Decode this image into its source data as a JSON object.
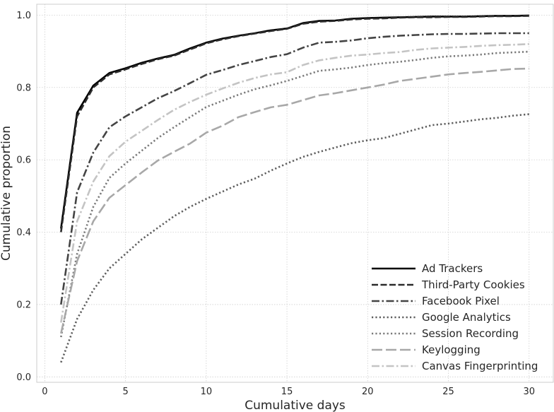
{
  "chart_data": {
    "type": "line",
    "xlabel": "Cumulative days",
    "ylabel": "Cumulative proportion",
    "xlim": [
      -0.5,
      31.5
    ],
    "ylim": [
      -0.015,
      1.03
    ],
    "xticks": [
      0,
      5,
      10,
      15,
      20,
      25,
      30
    ],
    "yticks": [
      0.0,
      0.2,
      0.4,
      0.6,
      0.8,
      1.0
    ],
    "grid": true,
    "legend_position": "lower-right",
    "x": [
      1,
      2,
      3,
      4,
      5,
      6,
      7,
      8,
      9,
      10,
      11,
      12,
      13,
      14,
      15,
      16,
      17,
      18,
      19,
      20,
      21,
      22,
      23,
      24,
      25,
      26,
      27,
      28,
      29,
      30
    ],
    "series": [
      {
        "name": "Ad Trackers",
        "color": "#000000",
        "dash": "solid",
        "values": [
          0.41,
          0.73,
          0.805,
          0.84,
          0.853,
          0.868,
          0.88,
          0.89,
          0.908,
          0.924,
          0.935,
          0.943,
          0.95,
          0.958,
          0.963,
          0.978,
          0.984,
          0.985,
          0.99,
          0.992,
          0.993,
          0.994,
          0.995,
          0.996,
          0.996,
          0.996,
          0.997,
          0.998,
          0.998,
          0.999
        ]
      },
      {
        "name": "Third-Party Cookies",
        "color": "#2b2b2b",
        "dash": "dashed",
        "values": [
          0.4,
          0.72,
          0.8,
          0.836,
          0.85,
          0.865,
          0.878,
          0.888,
          0.905,
          0.922,
          0.933,
          0.942,
          0.949,
          0.956,
          0.962,
          0.976,
          0.982,
          0.984,
          0.988,
          0.99,
          0.991,
          0.993,
          0.994,
          0.994,
          0.995,
          0.995,
          0.996,
          0.997,
          0.997,
          0.998
        ]
      },
      {
        "name": "Facebook Pixel",
        "color": "#444444",
        "dash": "dashdot",
        "values": [
          0.2,
          0.51,
          0.62,
          0.69,
          0.72,
          0.745,
          0.77,
          0.79,
          0.812,
          0.835,
          0.848,
          0.862,
          0.873,
          0.884,
          0.892,
          0.91,
          0.924,
          0.926,
          0.93,
          0.936,
          0.94,
          0.943,
          0.945,
          0.947,
          0.948,
          0.948,
          0.949,
          0.95,
          0.95,
          0.95
        ]
      },
      {
        "name": "Google Analytics",
        "color": "#5e5e5e",
        "dash": "dotted",
        "values": [
          0.04,
          0.16,
          0.24,
          0.3,
          0.34,
          0.38,
          0.412,
          0.444,
          0.47,
          0.492,
          0.512,
          0.532,
          0.548,
          0.57,
          0.59,
          0.608,
          0.622,
          0.634,
          0.646,
          0.654,
          0.66,
          0.672,
          0.684,
          0.696,
          0.7,
          0.706,
          0.712,
          0.716,
          0.722,
          0.726
        ]
      },
      {
        "name": "Session Recording",
        "color": "#7a7a7a",
        "dash": "dotted",
        "values": [
          0.11,
          0.34,
          0.47,
          0.55,
          0.59,
          0.625,
          0.66,
          0.69,
          0.718,
          0.746,
          0.763,
          0.78,
          0.795,
          0.806,
          0.818,
          0.832,
          0.846,
          0.85,
          0.855,
          0.862,
          0.867,
          0.871,
          0.876,
          0.882,
          0.886,
          0.888,
          0.891,
          0.895,
          0.897,
          0.899
        ]
      },
      {
        "name": "Keylogging",
        "color": "#a8a8a8",
        "dash": "longdash",
        "values": [
          0.12,
          0.32,
          0.43,
          0.495,
          0.53,
          0.565,
          0.598,
          0.622,
          0.645,
          0.675,
          0.694,
          0.718,
          0.732,
          0.745,
          0.752,
          0.765,
          0.778,
          0.784,
          0.792,
          0.8,
          0.808,
          0.818,
          0.824,
          0.83,
          0.836,
          0.84,
          0.843,
          0.847,
          0.851,
          0.852
        ]
      },
      {
        "name": "Canvas Fingerprinting",
        "color": "#c4c4c4",
        "dash": "dashdot",
        "values": [
          0.15,
          0.43,
          0.54,
          0.61,
          0.65,
          0.68,
          0.71,
          0.738,
          0.76,
          0.78,
          0.797,
          0.813,
          0.826,
          0.836,
          0.842,
          0.862,
          0.875,
          0.882,
          0.888,
          0.891,
          0.895,
          0.898,
          0.904,
          0.908,
          0.91,
          0.912,
          0.915,
          0.917,
          0.918,
          0.92
        ]
      }
    ]
  }
}
